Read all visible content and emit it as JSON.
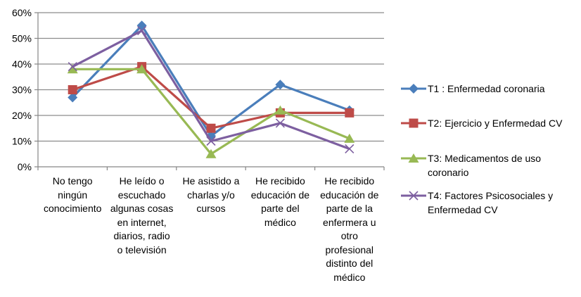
{
  "chart_data": {
    "type": "line",
    "title": "",
    "xlabel": "",
    "ylabel": "",
    "ylim": [
      0,
      60
    ],
    "y_ticks": [
      "0%",
      "10%",
      "20%",
      "30%",
      "40%",
      "50%",
      "60%"
    ],
    "grid": true,
    "legend_position": "right",
    "categories": [
      "No tengo ningún conocimiento",
      "He leído o escuchado algunas cosas en internet, diarios, radio o televisión",
      "He asistido a charlas y/o cursos",
      "He recibido educación de parte del médico",
      "He recibido educación de parte de la enfermera u otro profesional distinto del médico"
    ],
    "category_label_lines": [
      [
        "No tengo",
        "ningún",
        "conocimiento"
      ],
      [
        "He leído o",
        "escuchado",
        "algunas cosas",
        "en internet,",
        "diarios, radio",
        "o televisión"
      ],
      [
        "He asistido a",
        "charlas y/o",
        "cursos"
      ],
      [
        "He recibido",
        "educación de",
        "parte del",
        "médico"
      ],
      [
        "He recibido",
        "educación de",
        "parte de la",
        "enfermera u",
        "otro",
        "profesional",
        "distinto del",
        "médico"
      ]
    ],
    "series": [
      {
        "name": "T1 : Enfermedad coronaria",
        "marker": "diamond",
        "color": "#4A7EBB",
        "values": [
          27,
          55,
          12,
          32,
          22
        ]
      },
      {
        "name": "T2: Ejercicio y Enfermedad CV",
        "marker": "square",
        "color": "#BE4B48",
        "values": [
          30,
          39,
          15,
          21,
          21
        ]
      },
      {
        "name": "T3: Medicamentos de uso coronario",
        "marker": "triangle",
        "color": "#98B954",
        "values": [
          38,
          38,
          5,
          22,
          11
        ]
      },
      {
        "name": "T4: Factores Psicosociales y Enfermedad CV",
        "marker": "x",
        "color": "#7D5FA0",
        "values": [
          39,
          53,
          10,
          17,
          7
        ]
      }
    ]
  },
  "legend": {
    "items": [
      {
        "lines": [
          "T1 : Enfermedad coronaria"
        ]
      },
      {
        "lines": [
          "T2: Ejercicio y Enfermedad CV"
        ]
      },
      {
        "lines": [
          "T3: Medicamentos de uso",
          "coronario"
        ]
      },
      {
        "lines": [
          "T4: Factores Psicosociales y",
          "Enfermedad CV"
        ]
      }
    ]
  }
}
